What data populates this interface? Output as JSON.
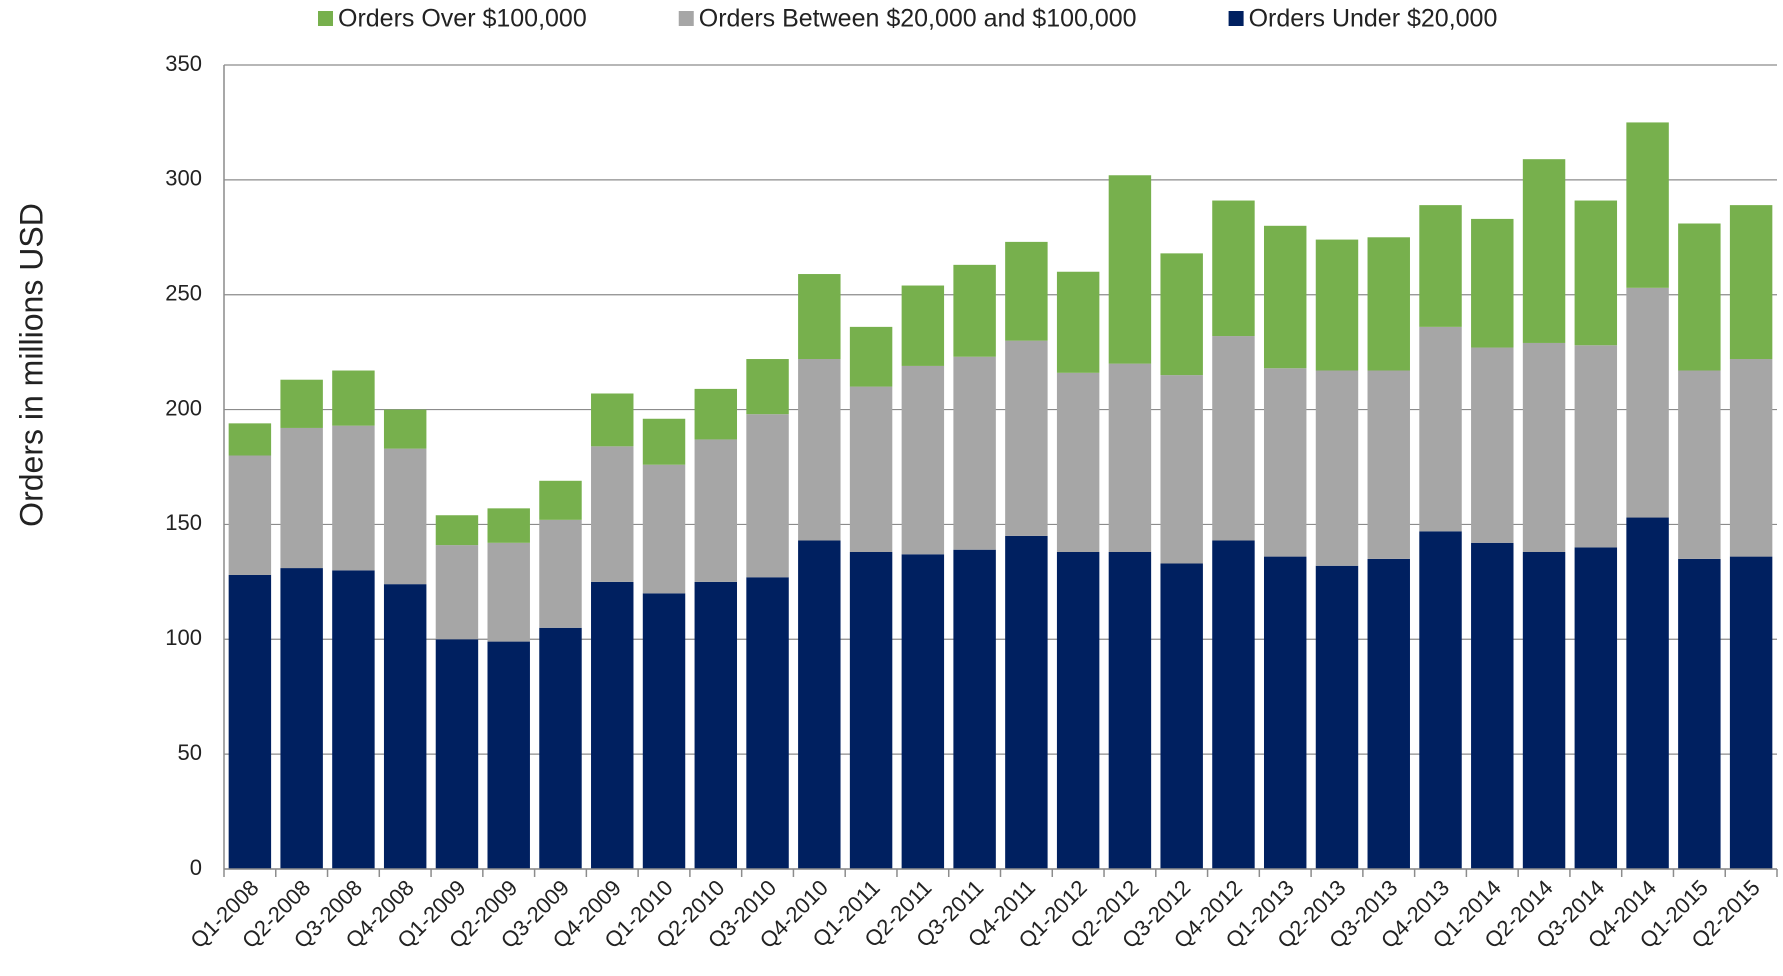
{
  "chart_data": {
    "type": "stacked_bar",
    "y_label": "Orders in millions USD",
    "categories": [
      "Q1-2008",
      "Q2-2008",
      "Q3-2008",
      "Q4-2008",
      "Q1-2009",
      "Q2-2009",
      "Q3-2009",
      "Q4-2009",
      "Q1-2010",
      "Q2-2010",
      "Q3-2010",
      "Q4-2010",
      "Q1-2011",
      "Q2-2011",
      "Q3-2011",
      "Q4-2011",
      "Q1-2012",
      "Q2-2012",
      "Q3-2012",
      "Q4-2012",
      "Q1-2013",
      "Q2-2013",
      "Q3-2013",
      "Q4-2013",
      "Q1-2014",
      "Q2-2014",
      "Q3-2014",
      "Q4-2014",
      "Q1-2015",
      "Q2-2015"
    ],
    "series": [
      {
        "name": "Orders Over $100,000",
        "color": "#77b04d",
        "values": [
          14,
          21,
          24,
          17,
          13,
          15,
          17,
          23,
          20,
          22,
          24,
          37,
          26,
          35,
          40,
          43,
          44,
          82,
          53,
          59,
          62,
          57,
          58,
          53,
          56,
          80,
          63,
          72,
          64,
          67
        ]
      },
      {
        "name": "Orders Between $20,000 and $100,000",
        "color": "#a6a6a6",
        "values": [
          52,
          61,
          63,
          59,
          41,
          43,
          47,
          59,
          56,
          62,
          71,
          79,
          72,
          82,
          84,
          85,
          78,
          82,
          82,
          89,
          82,
          85,
          82,
          89,
          85,
          91,
          88,
          100,
          82,
          86
        ]
      },
      {
        "name": "Orders Under $20,000",
        "color": "#002060",
        "values": [
          128,
          131,
          130,
          124,
          100,
          99,
          105,
          125,
          120,
          125,
          127,
          143,
          138,
          137,
          139,
          145,
          138,
          138,
          133,
          143,
          136,
          132,
          135,
          147,
          142,
          138,
          140,
          153,
          135,
          136
        ]
      }
    ],
    "ylim": [
      0,
      350
    ],
    "yticks": [
      0,
      50,
      100,
      150,
      200,
      250,
      300,
      350
    ],
    "grid": true,
    "legend": "top"
  }
}
